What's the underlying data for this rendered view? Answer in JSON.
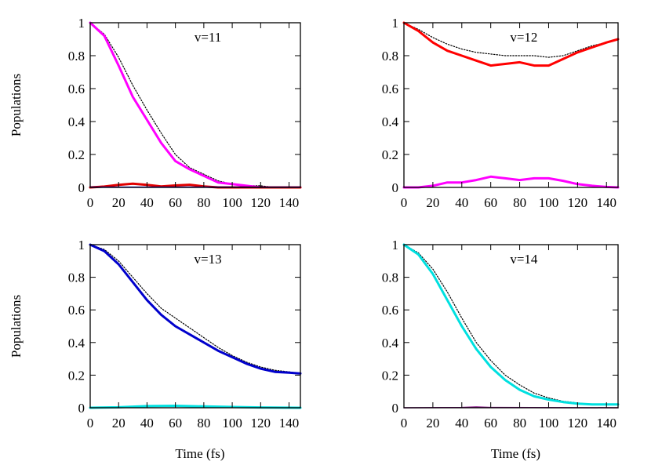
{
  "chart_data": [
    {
      "type": "line",
      "title": "v=11",
      "xlabel": "",
      "ylabel": "Populations",
      "xlim": [
        0,
        148
      ],
      "ylim": [
        0,
        1
      ],
      "xticks": [
        "0",
        "20",
        "40",
        "60",
        "80",
        "100",
        "120",
        "140"
      ],
      "yticks": [
        "0",
        "0.2",
        "0.4",
        "0.6",
        "0.8",
        "1"
      ],
      "series": [
        {
          "name": "dotted reference",
          "color": "#000000",
          "style": "dotted",
          "x": [
            0,
            10,
            20,
            30,
            40,
            50,
            60,
            70,
            80,
            90,
            100,
            110,
            120,
            130,
            140,
            148
          ],
          "y": [
            1.0,
            0.93,
            0.79,
            0.62,
            0.47,
            0.33,
            0.2,
            0.12,
            0.08,
            0.04,
            0.02,
            0.01,
            0.01,
            0.0,
            0.0,
            0.0
          ]
        },
        {
          "name": "v=11 population",
          "color": "#ff00ff",
          "style": "thick",
          "x": [
            0,
            10,
            20,
            30,
            40,
            50,
            60,
            70,
            80,
            90,
            100,
            110,
            120,
            130,
            140,
            148
          ],
          "y": [
            1.0,
            0.92,
            0.74,
            0.55,
            0.41,
            0.27,
            0.16,
            0.11,
            0.07,
            0.03,
            0.02,
            0.01,
            0.0,
            0.0,
            0.0,
            0.0
          ]
        },
        {
          "name": "red component",
          "color": "#e00000",
          "style": "thick",
          "x": [
            0,
            10,
            20,
            30,
            40,
            50,
            60,
            70,
            80,
            90,
            100,
            148
          ],
          "y": [
            0.0,
            0.005,
            0.015,
            0.023,
            0.015,
            0.006,
            0.012,
            0.016,
            0.006,
            0.0,
            0.0,
            0.0
          ]
        },
        {
          "name": "blue component",
          "color": "#0000cc",
          "style": "thin",
          "x": [
            0,
            148
          ],
          "y": [
            0.002,
            0.002
          ]
        }
      ]
    },
    {
      "type": "line",
      "title": "v=12",
      "xlabel": "",
      "ylabel": "",
      "xlim": [
        0,
        148
      ],
      "ylim": [
        0,
        1
      ],
      "xticks": [
        "0",
        "20",
        "40",
        "60",
        "80",
        "100",
        "120",
        "140"
      ],
      "yticks": [
        "0",
        "0.2",
        "0.4",
        "0.6",
        "0.8",
        "1"
      ],
      "series": [
        {
          "name": "dotted reference",
          "color": "#000000",
          "style": "dotted",
          "x": [
            0,
            10,
            20,
            30,
            40,
            50,
            60,
            70,
            80,
            90,
            100,
            110,
            120,
            130,
            140,
            148
          ],
          "y": [
            1.0,
            0.96,
            0.91,
            0.87,
            0.84,
            0.82,
            0.81,
            0.8,
            0.8,
            0.8,
            0.79,
            0.8,
            0.83,
            0.86,
            0.88,
            0.9
          ]
        },
        {
          "name": "v=12 population",
          "color": "#ff0000",
          "style": "thick",
          "x": [
            0,
            10,
            20,
            30,
            40,
            50,
            60,
            70,
            80,
            90,
            100,
            110,
            120,
            130,
            140,
            148
          ],
          "y": [
            1.0,
            0.95,
            0.88,
            0.83,
            0.8,
            0.77,
            0.74,
            0.75,
            0.76,
            0.74,
            0.74,
            0.78,
            0.82,
            0.85,
            0.88,
            0.9
          ]
        },
        {
          "name": "magenta component",
          "color": "#ff00ff",
          "style": "thick",
          "x": [
            0,
            10,
            20,
            30,
            40,
            50,
            60,
            70,
            80,
            90,
            100,
            110,
            120,
            130,
            140,
            148
          ],
          "y": [
            0.0,
            0.0,
            0.01,
            0.03,
            0.03,
            0.045,
            0.065,
            0.055,
            0.045,
            0.055,
            0.055,
            0.04,
            0.02,
            0.01,
            0.003,
            0.0
          ]
        }
      ]
    },
    {
      "type": "line",
      "title": "v=13",
      "xlabel": "Time (fs)",
      "ylabel": "Populations",
      "xlim": [
        0,
        148
      ],
      "ylim": [
        0,
        1
      ],
      "xticks": [
        "0",
        "20",
        "40",
        "60",
        "80",
        "100",
        "120",
        "140"
      ],
      "yticks": [
        "0",
        "0.2",
        "0.4",
        "0.6",
        "0.8",
        "1"
      ],
      "series": [
        {
          "name": "dotted reference",
          "color": "#000000",
          "style": "dotted",
          "x": [
            0,
            10,
            20,
            30,
            40,
            50,
            60,
            70,
            80,
            90,
            100,
            110,
            120,
            130,
            140,
            148
          ],
          "y": [
            1.0,
            0.97,
            0.9,
            0.8,
            0.7,
            0.61,
            0.55,
            0.49,
            0.43,
            0.37,
            0.32,
            0.28,
            0.25,
            0.23,
            0.22,
            0.21
          ]
        },
        {
          "name": "v=13 population",
          "color": "#0000cc",
          "style": "thick",
          "x": [
            0,
            10,
            20,
            30,
            40,
            50,
            60,
            70,
            80,
            90,
            100,
            110,
            120,
            130,
            140,
            148
          ],
          "y": [
            1.0,
            0.96,
            0.88,
            0.77,
            0.66,
            0.57,
            0.5,
            0.45,
            0.4,
            0.35,
            0.31,
            0.27,
            0.24,
            0.22,
            0.215,
            0.21
          ]
        },
        {
          "name": "cyan component",
          "color": "#00e0e0",
          "style": "thick",
          "x": [
            0,
            20,
            40,
            60,
            80,
            100,
            120,
            148
          ],
          "y": [
            0.0,
            0.003,
            0.01,
            0.012,
            0.008,
            0.005,
            0.002,
            0.0
          ]
        }
      ]
    },
    {
      "type": "line",
      "title": "v=14",
      "xlabel": "Time (fs)",
      "ylabel": "",
      "xlim": [
        0,
        148
      ],
      "ylim": [
        0,
        1
      ],
      "xticks": [
        "0",
        "20",
        "40",
        "60",
        "80",
        "100",
        "120",
        "140"
      ],
      "yticks": [
        "0",
        "0.2",
        "0.4",
        "0.6",
        "0.8",
        "1"
      ],
      "series": [
        {
          "name": "dotted reference",
          "color": "#000000",
          "style": "dotted",
          "x": [
            0,
            10,
            20,
            30,
            40,
            50,
            60,
            70,
            80,
            90,
            100,
            110,
            120,
            130,
            140,
            148
          ],
          "y": [
            1.0,
            0.95,
            0.85,
            0.71,
            0.55,
            0.4,
            0.29,
            0.2,
            0.14,
            0.09,
            0.06,
            0.04,
            0.03,
            0.02,
            0.02,
            0.02
          ]
        },
        {
          "name": "v=14 population",
          "color": "#00e0e0",
          "style": "thick",
          "x": [
            0,
            10,
            20,
            30,
            40,
            50,
            60,
            70,
            80,
            90,
            100,
            110,
            120,
            130,
            140,
            148
          ],
          "y": [
            1.0,
            0.94,
            0.82,
            0.66,
            0.5,
            0.36,
            0.25,
            0.17,
            0.11,
            0.07,
            0.05,
            0.035,
            0.025,
            0.02,
            0.02,
            0.02
          ]
        },
        {
          "name": "purple component",
          "color": "#800080",
          "style": "thin",
          "x": [
            0,
            40,
            50,
            60,
            148
          ],
          "y": [
            0.0,
            0.002,
            0.005,
            0.002,
            0.0
          ]
        }
      ]
    }
  ]
}
